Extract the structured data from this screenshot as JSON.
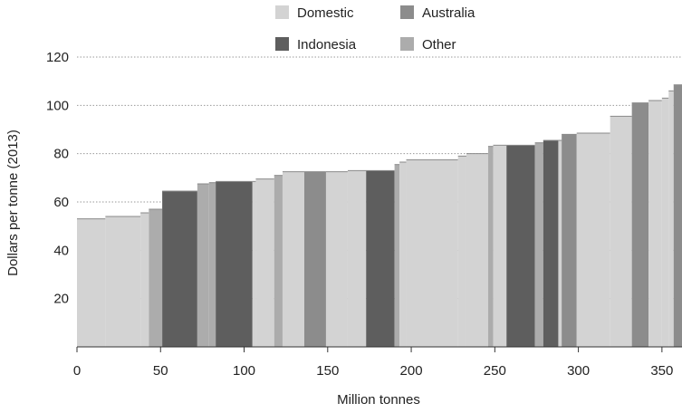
{
  "chart_data": {
    "type": "bar",
    "subtype": "cost-curve",
    "title": "",
    "xlabel": "Million tonnes",
    "ylabel": "Dollars per tonne (2013)",
    "xlim": [
      0,
      362
    ],
    "ylim": [
      0,
      120
    ],
    "xticks": [
      0,
      50,
      100,
      150,
      200,
      250,
      300,
      350
    ],
    "yticks": [
      20,
      40,
      60,
      80,
      100,
      120
    ],
    "grid": "horizontal-dotted",
    "legend_position": "top-center",
    "legend": [
      {
        "name": "Domestic",
        "color": "#d3d3d3"
      },
      {
        "name": "Australia",
        "color": "#8c8c8c"
      },
      {
        "name": "Indonesia",
        "color": "#5e5e5e"
      },
      {
        "name": "Other",
        "color": "#acacac"
      }
    ],
    "segments": [
      {
        "x0": 0,
        "x1": 17,
        "value": 53,
        "series": "Domestic"
      },
      {
        "x0": 17,
        "x1": 38,
        "value": 54,
        "series": "Domestic"
      },
      {
        "x0": 38,
        "x1": 43,
        "value": 55.5,
        "series": "Domestic"
      },
      {
        "x0": 43,
        "x1": 51,
        "value": 57,
        "series": "Other"
      },
      {
        "x0": 51,
        "x1": 72,
        "value": 64.5,
        "series": "Indonesia"
      },
      {
        "x0": 72,
        "x1": 79,
        "value": 67.5,
        "series": "Other"
      },
      {
        "x0": 79,
        "x1": 83,
        "value": 68,
        "series": "Other"
      },
      {
        "x0": 83,
        "x1": 105,
        "value": 68.5,
        "series": "Indonesia"
      },
      {
        "x0": 105,
        "x1": 107,
        "value": 68.5,
        "series": "Domestic"
      },
      {
        "x0": 107,
        "x1": 118,
        "value": 69.5,
        "series": "Domestic"
      },
      {
        "x0": 118,
        "x1": 123,
        "value": 71,
        "series": "Other"
      },
      {
        "x0": 123,
        "x1": 136,
        "value": 72.5,
        "series": "Domestic"
      },
      {
        "x0": 136,
        "x1": 149,
        "value": 72.5,
        "series": "Australia"
      },
      {
        "x0": 149,
        "x1": 162,
        "value": 72.5,
        "series": "Domestic"
      },
      {
        "x0": 162,
        "x1": 173,
        "value": 73,
        "series": "Domestic"
      },
      {
        "x0": 173,
        "x1": 190,
        "value": 73,
        "series": "Indonesia"
      },
      {
        "x0": 190,
        "x1": 193,
        "value": 75.5,
        "series": "Other"
      },
      {
        "x0": 193,
        "x1": 197,
        "value": 76.5,
        "series": "Domestic"
      },
      {
        "x0": 197,
        "x1": 228,
        "value": 77.5,
        "series": "Domestic"
      },
      {
        "x0": 228,
        "x1": 233,
        "value": 79,
        "series": "Domestic"
      },
      {
        "x0": 233,
        "x1": 246,
        "value": 80,
        "series": "Domestic"
      },
      {
        "x0": 246,
        "x1": 249,
        "value": 83,
        "series": "Other"
      },
      {
        "x0": 249,
        "x1": 257,
        "value": 83.5,
        "series": "Domestic"
      },
      {
        "x0": 257,
        "x1": 274,
        "value": 83.5,
        "series": "Indonesia"
      },
      {
        "x0": 274,
        "x1": 279,
        "value": 84.5,
        "series": "Other"
      },
      {
        "x0": 279,
        "x1": 288,
        "value": 85.5,
        "series": "Indonesia"
      },
      {
        "x0": 288,
        "x1": 290,
        "value": 85.5,
        "series": "Domestic"
      },
      {
        "x0": 290,
        "x1": 299,
        "value": 88,
        "series": "Australia"
      },
      {
        "x0": 299,
        "x1": 319,
        "value": 88.5,
        "series": "Domestic"
      },
      {
        "x0": 319,
        "x1": 332,
        "value": 95.5,
        "series": "Domestic"
      },
      {
        "x0": 332,
        "x1": 342,
        "value": 101,
        "series": "Australia"
      },
      {
        "x0": 342,
        "x1": 350,
        "value": 102,
        "series": "Domestic"
      },
      {
        "x0": 350,
        "x1": 354,
        "value": 103,
        "series": "Domestic"
      },
      {
        "x0": 354,
        "x1": 357,
        "value": 106,
        "series": "Domestic"
      },
      {
        "x0": 357,
        "x1": 362,
        "value": 108.5,
        "series": "Australia"
      }
    ]
  }
}
